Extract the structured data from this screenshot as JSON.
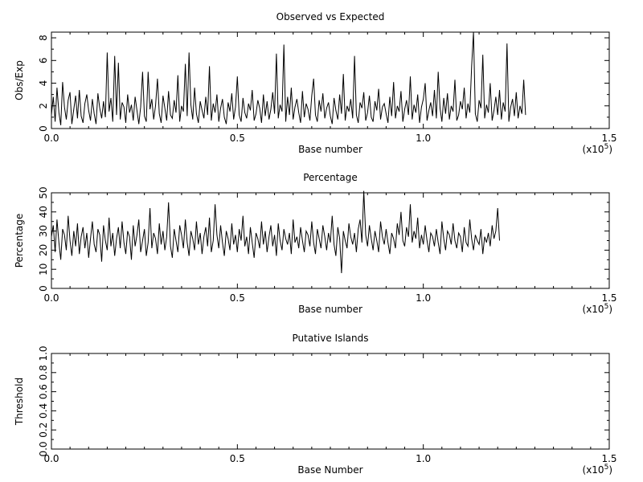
{
  "chart_data": [
    {
      "type": "line",
      "title": "Observed vs Expected",
      "xlabel": "Base number",
      "ylabel": "Obs/Exp",
      "xlim": [
        0,
        150000
      ],
      "ylim": [
        0,
        8.5
      ],
      "x_ticks": [
        0,
        50000,
        100000,
        150000
      ],
      "x_tick_labels": [
        "0.0",
        "0.5",
        "1.0",
        "1.5"
      ],
      "y_ticks": [
        0,
        2,
        4,
        6,
        8
      ],
      "y_tick_labels": [
        "0",
        "2",
        "4",
        "6",
        "8"
      ],
      "x_multiplier": "(x10",
      "x_multiplier_exp": "5",
      "x_multiplier_close": ")",
      "grid": false,
      "series": [
        {
          "sample_step": 500,
          "values": [
            1.2,
            2.8,
            0.6,
            3.6,
            1.4,
            0.3,
            4.1,
            1.9,
            0.8,
            2.5,
            3.2,
            0.4,
            1.7,
            2.9,
            0.9,
            3.4,
            1.1,
            0.5,
            2.2,
            3.0,
            1.6,
            0.7,
            2.6,
            1.3,
            0.4,
            3.1,
            1.8,
            0.9,
            2.4,
            1.0,
            6.7,
            1.5,
            2.7,
            0.6,
            6.4,
            1.2,
            5.8,
            0.8,
            2.3,
            1.9,
            0.5,
            3.0,
            1.4,
            2.1,
            0.7,
            2.8,
            1.6,
            0.4,
            1.9,
            5.0,
            1.1,
            0.6,
            5.0,
            1.7,
            2.6,
            0.8,
            2.0,
            4.4,
            1.3,
            0.5,
            2.9,
            1.8,
            0.7,
            3.3,
            1.2,
            0.9,
            2.5,
            1.4,
            4.7,
            0.6,
            2.0,
            1.5,
            5.7,
            1.1,
            6.7,
            2.1,
            0.8,
            3.6,
            1.3,
            0.5,
            2.4,
            1.6,
            0.9,
            2.8,
            1.2,
            5.5,
            0.7,
            2.2,
            1.4,
            3.0,
            0.6,
            1.8,
            2.6,
            1.0,
            0.4,
            2.3,
            1.5,
            3.1,
            0.8,
            1.9,
            4.6,
            1.2,
            0.6,
            2.7,
            1.4,
            0.9,
            2.2,
            1.6,
            3.4,
            0.7,
            1.3,
            2.5,
            1.8,
            0.5,
            3.0,
            1.1,
            2.4,
            0.8,
            1.7,
            3.2,
            1.3,
            6.6,
            0.9,
            2.1,
            1.5,
            7.4,
            0.6,
            2.8,
            1.2,
            3.6,
            0.8,
            1.9,
            2.6,
            1.4,
            0.5,
            3.3,
            1.0,
            2.2,
            1.7,
            0.7,
            2.9,
            4.4,
            1.2,
            0.6,
            2.5,
            1.5,
            3.1,
            0.9,
            1.8,
            2.3,
            1.1,
            0.4,
            2.7,
            1.6,
            0.8,
            3.0,
            1.3,
            4.8,
            0.7,
            2.0,
            1.5,
            2.6,
            0.9,
            6.4,
            1.2,
            0.5,
            2.3,
            1.8,
            3.2,
            0.7,
            1.4,
            2.9,
            1.0,
            0.6,
            2.4,
            1.6,
            3.5,
            0.8,
            1.9,
            2.2,
            1.3,
            0.5,
            2.8,
            1.1,
            4.1,
            0.9,
            2.0,
            1.5,
            3.3,
            0.6,
            1.7,
            2.5,
            1.2,
            4.6,
            0.8,
            2.1,
            1.4,
            3.0,
            0.5,
            1.9,
            2.6,
            4.0,
            0.7,
            1.6,
            2.3,
            1.1,
            3.4,
            0.9,
            5.0,
            1.8,
            0.6,
            2.7,
            1.3,
            3.1,
            0.8,
            2.0,
            1.5,
            4.3,
            0.7,
            1.2,
            2.4,
            1.7,
            3.6,
            0.9,
            2.2,
            1.4,
            5.5,
            8.5,
            1.3,
            0.6,
            2.5,
            1.8,
            6.5,
            0.9,
            2.1,
            1.4,
            4.0,
            0.7,
            1.6,
            2.8,
            1.2,
            3.4,
            0.8,
            2.3,
            1.5,
            7.5,
            0.6,
            1.9,
            2.6,
            1.1,
            3.2,
            0.9,
            2.0,
            1.3,
            4.3,
            1.2
          ]
        }
      ]
    },
    {
      "type": "line",
      "title": "Percentage",
      "xlabel": "Base number",
      "ylabel": "Percentage",
      "xlim": [
        0,
        150000
      ],
      "ylim": [
        0,
        50
      ],
      "x_ticks": [
        0,
        50000,
        100000,
        150000
      ],
      "x_tick_labels": [
        "0.0",
        "0.5",
        "1.0",
        "1.5"
      ],
      "y_ticks": [
        0,
        10,
        20,
        30,
        40,
        50
      ],
      "y_tick_labels": [
        "0",
        "10",
        "20",
        "30",
        "40",
        "50"
      ],
      "x_multiplier": "(x10",
      "x_multiplier_exp": "5",
      "x_multiplier_close": ")",
      "grid": false,
      "series": [
        {
          "sample_step": 500,
          "values": [
            27,
            33,
            19,
            36,
            24,
            15,
            31,
            28,
            20,
            38,
            25,
            17,
            30,
            22,
            34,
            18,
            27,
            32,
            21,
            29,
            16,
            26,
            35,
            23,
            19,
            31,
            28,
            14,
            33,
            25,
            20,
            37,
            22,
            29,
            17,
            26,
            32,
            21,
            35,
            24,
            18,
            30,
            27,
            15,
            33,
            22,
            28,
            36,
            19,
            25,
            31,
            17,
            24,
            42,
            21,
            29,
            26,
            18,
            34,
            23,
            30,
            20,
            27,
            45,
            22,
            16,
            31,
            25,
            19,
            33,
            28,
            21,
            36,
            24,
            17,
            30,
            26,
            20,
            35,
            23,
            29,
            18,
            27,
            32,
            22,
            37,
            19,
            25,
            44,
            28,
            21,
            33,
            24,
            17,
            30,
            26,
            20,
            34,
            23,
            28,
            19,
            31,
            25,
            38,
            22,
            27,
            18,
            32,
            24,
            16,
            29,
            26,
            21,
            35,
            23,
            30,
            19,
            27,
            33,
            22,
            28,
            17,
            34,
            25,
            20,
            31,
            26,
            23,
            29,
            18,
            36,
            24,
            27,
            21,
            32,
            25,
            19,
            30,
            28,
            22,
            35,
            24,
            18,
            31,
            26,
            21,
            33,
            27,
            20,
            29,
            24,
            38,
            23,
            17,
            32,
            26,
            8,
            30,
            25,
            21,
            34,
            27,
            23,
            29,
            19,
            31,
            36,
            24,
            51,
            28,
            22,
            33,
            26,
            20,
            30,
            25,
            19,
            35,
            27,
            23,
            31,
            24,
            18,
            29,
            26,
            21,
            34,
            28,
            40,
            25,
            22,
            32,
            27,
            44,
            24,
            30,
            26,
            37,
            21,
            28,
            23,
            33,
            25,
            19,
            29,
            27,
            22,
            31,
            24,
            18,
            35,
            26,
            20,
            30,
            28,
            23,
            34,
            25,
            21,
            29,
            27,
            19,
            32,
            24,
            22,
            36,
            26,
            20,
            28,
            25,
            23,
            31,
            18,
            27,
            24,
            29,
            22,
            33,
            26,
            30,
            42,
            25
          ]
        }
      ]
    },
    {
      "type": "line",
      "title": "Putative Islands",
      "xlabel": "Base Number",
      "ylabel": "Threshold",
      "xlim": [
        0,
        150000
      ],
      "ylim": [
        0,
        1
      ],
      "x_ticks": [
        0,
        50000,
        100000,
        150000
      ],
      "x_tick_labels": [
        "0.0",
        "0.5",
        "1.0",
        "1.5"
      ],
      "y_ticks": [
        0,
        0.2,
        0.4,
        0.6,
        0.8,
        1.0
      ],
      "y_tick_labels": [
        "0.0",
        "0.2",
        "0.4",
        "0.6",
        "0.8",
        "1.0"
      ],
      "x_multiplier": "(x10",
      "x_multiplier_exp": "5",
      "x_multiplier_close": ")",
      "grid": false,
      "series": []
    }
  ]
}
